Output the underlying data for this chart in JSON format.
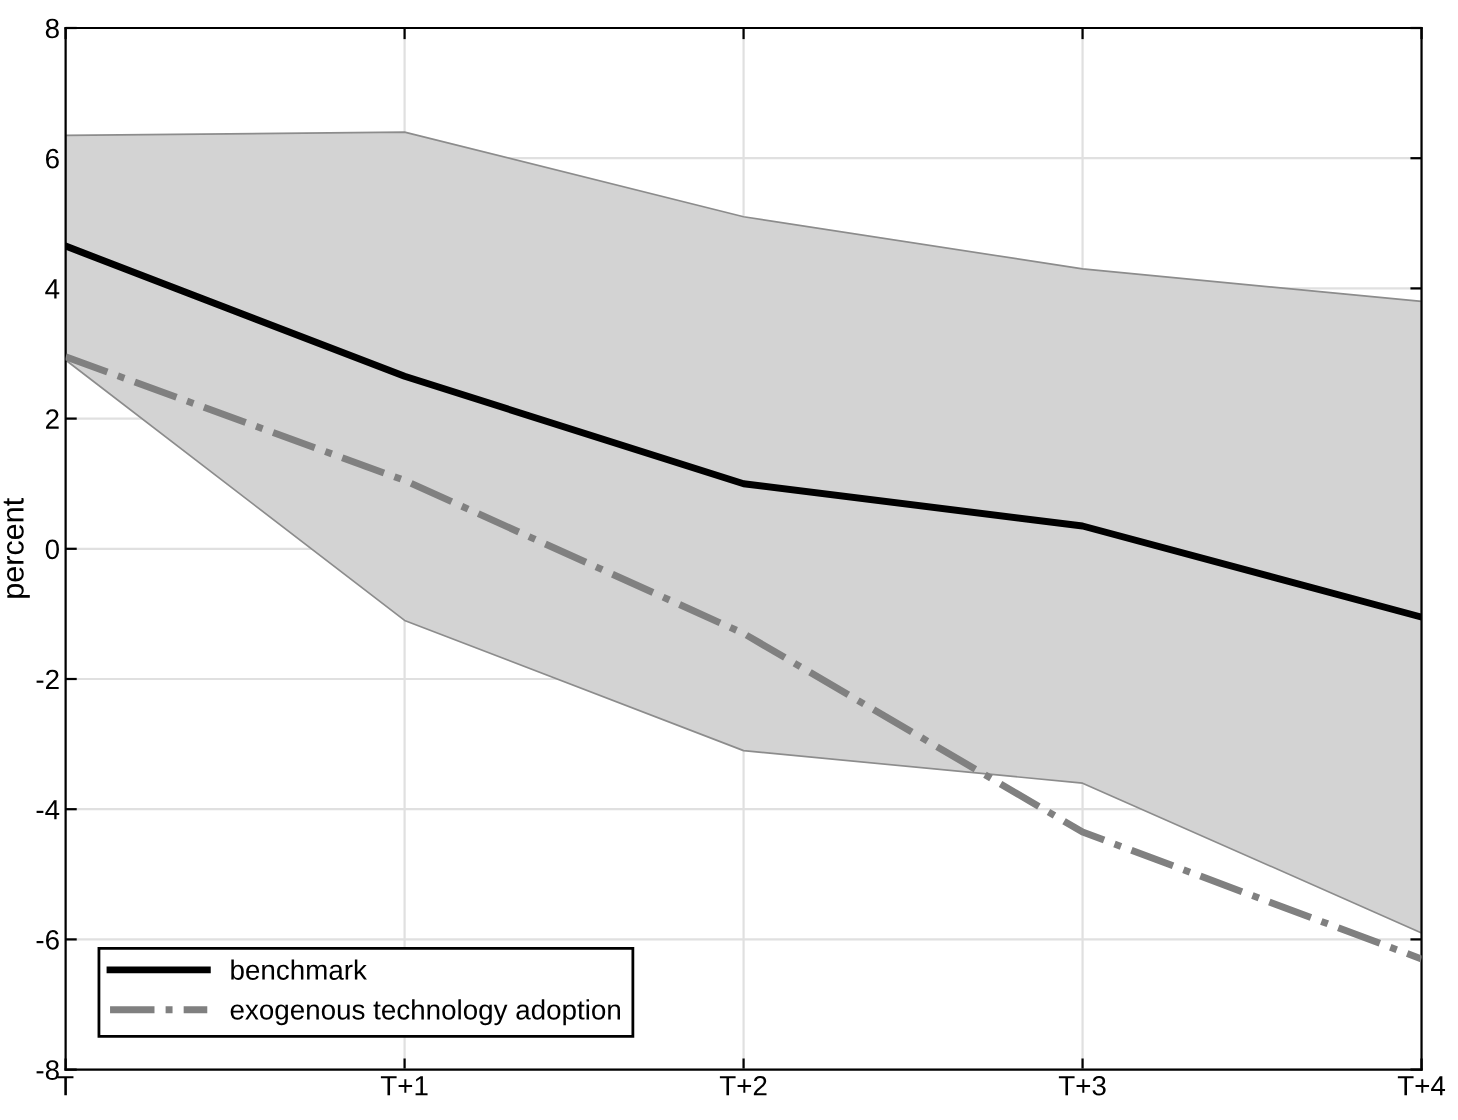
{
  "chart_data": {
    "type": "line",
    "ylabel": "percent",
    "categories": [
      "T",
      "T+1",
      "T+2",
      "T+3",
      "T+4"
    ],
    "series": [
      {
        "name": "benchmark",
        "color": "#000000",
        "line_style": "solid",
        "values": [
          4.65,
          2.65,
          1.0,
          0.35,
          -1.05
        ],
        "lower": [
          2.9,
          -1.1,
          -3.1,
          -3.6,
          -5.9
        ],
        "upper": [
          6.35,
          6.4,
          5.1,
          4.3,
          3.8
        ]
      },
      {
        "name": "exogenous technology adoption",
        "color": "#808080",
        "line_style": "dashdot",
        "values": [
          2.95,
          1.05,
          -1.3,
          -4.35,
          -6.3
        ]
      }
    ],
    "ylim": [
      -8,
      8
    ],
    "yticks": [
      -8,
      -6,
      -4,
      -2,
      0,
      2,
      4,
      6,
      8
    ],
    "grid": true,
    "legend": "bottom left",
    "marker": "none"
  }
}
